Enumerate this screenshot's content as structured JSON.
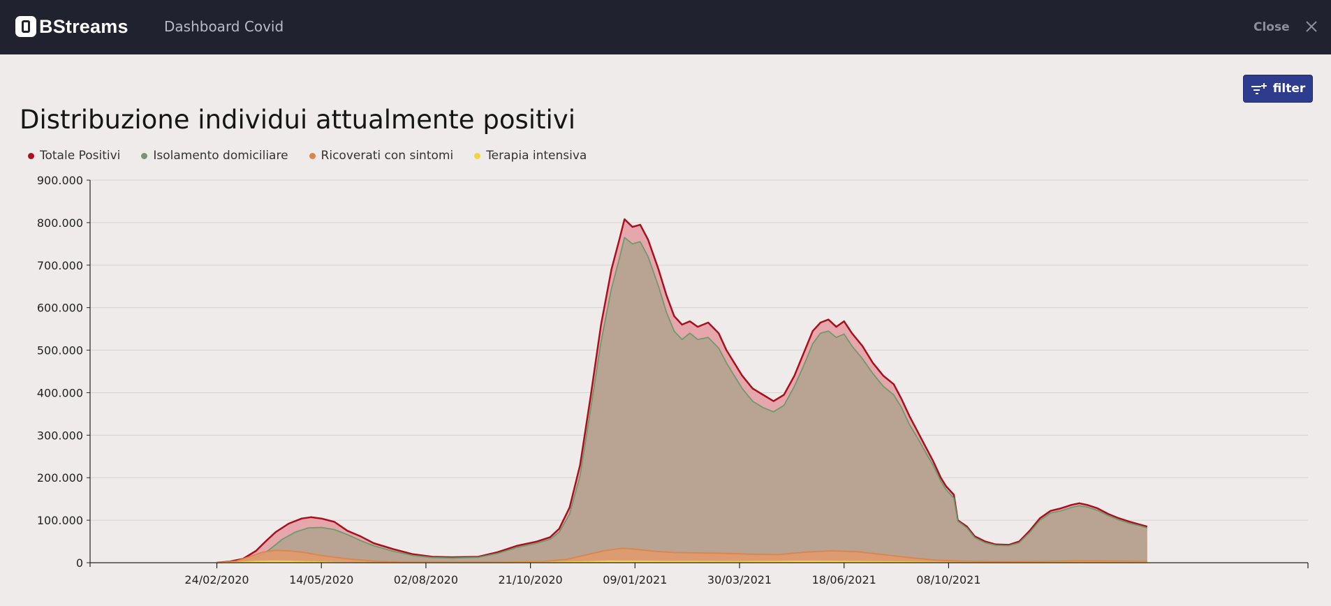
{
  "app": {
    "brand": "BStreams",
    "title": "Dashboard Covid",
    "close_label": "Close"
  },
  "toolbar": {
    "filter_label": "filter"
  },
  "icons": {
    "logo": "bstreams-logo-icon",
    "close": "close-icon",
    "filter": "filter-add-icon"
  },
  "chart_data": {
    "type": "area",
    "title": "Distribuzione individui attualmente positivi",
    "xlabel": "",
    "ylabel": "",
    "ylim": [
      0,
      900000
    ],
    "yticks": [
      0,
      100000,
      200000,
      300000,
      400000,
      500000,
      600000,
      700000,
      800000,
      900000
    ],
    "ytick_labels": [
      "0",
      "100.000",
      "200.000",
      "300.000",
      "400.000",
      "500.000",
      "600.000",
      "700.000",
      "800.000",
      "900.000"
    ],
    "xlim_days": [
      -97,
      835
    ],
    "xtick_days": [
      0,
      80,
      160,
      240,
      320,
      400,
      480,
      560
    ],
    "xtick_labels": [
      "24/02/2020",
      "14/05/2020",
      "02/08/2020",
      "21/10/2020",
      "09/01/2021",
      "30/03/2021",
      "18/06/2021",
      "08/10/2021"
    ],
    "x_unit": "days since 24/02/2020",
    "grid": true,
    "legend_position": "top-left",
    "series": [
      {
        "name": "Totale Positivi",
        "color": "#a8101c",
        "fill": "#e3a0a5",
        "points": [
          [
            0,
            0
          ],
          [
            10,
            3000
          ],
          [
            20,
            9000
          ],
          [
            30,
            28000
          ],
          [
            38,
            52000
          ],
          [
            45,
            72000
          ],
          [
            55,
            92000
          ],
          [
            65,
            104000
          ],
          [
            72,
            107000
          ],
          [
            80,
            104000
          ],
          [
            90,
            96000
          ],
          [
            100,
            75000
          ],
          [
            110,
            62000
          ],
          [
            120,
            46000
          ],
          [
            135,
            32000
          ],
          [
            150,
            20000
          ],
          [
            165,
            14000
          ],
          [
            180,
            13000
          ],
          [
            200,
            14000
          ],
          [
            215,
            25000
          ],
          [
            230,
            40000
          ],
          [
            245,
            50000
          ],
          [
            255,
            60000
          ],
          [
            262,
            80000
          ],
          [
            270,
            130000
          ],
          [
            278,
            230000
          ],
          [
            286,
            390000
          ],
          [
            294,
            560000
          ],
          [
            302,
            690000
          ],
          [
            308,
            760000
          ],
          [
            312,
            808000
          ],
          [
            318,
            790000
          ],
          [
            324,
            795000
          ],
          [
            330,
            760000
          ],
          [
            338,
            690000
          ],
          [
            344,
            630000
          ],
          [
            350,
            580000
          ],
          [
            356,
            560000
          ],
          [
            362,
            568000
          ],
          [
            368,
            555000
          ],
          [
            376,
            565000
          ],
          [
            384,
            540000
          ],
          [
            390,
            500000
          ],
          [
            396,
            470000
          ],
          [
            402,
            440000
          ],
          [
            410,
            410000
          ],
          [
            418,
            395000
          ],
          [
            426,
            380000
          ],
          [
            434,
            395000
          ],
          [
            442,
            440000
          ],
          [
            450,
            500000
          ],
          [
            456,
            545000
          ],
          [
            462,
            565000
          ],
          [
            468,
            572000
          ],
          [
            474,
            555000
          ],
          [
            480,
            568000
          ],
          [
            486,
            540000
          ],
          [
            494,
            510000
          ],
          [
            502,
            470000
          ],
          [
            510,
            440000
          ],
          [
            518,
            420000
          ],
          [
            524,
            385000
          ],
          [
            530,
            345000
          ],
          [
            536,
            310000
          ],
          [
            542,
            275000
          ],
          [
            548,
            240000
          ],
          [
            554,
            200000
          ],
          [
            558,
            180000
          ],
          [
            564,
            160000
          ],
          [
            567,
            100000
          ],
          [
            574,
            85000
          ],
          [
            580,
            62000
          ],
          [
            588,
            50000
          ],
          [
            596,
            43000
          ],
          [
            606,
            42000
          ],
          [
            614,
            50000
          ],
          [
            622,
            75000
          ],
          [
            630,
            105000
          ],
          [
            638,
            122000
          ],
          [
            646,
            128000
          ],
          [
            654,
            136000
          ],
          [
            660,
            140000
          ],
          [
            666,
            136000
          ],
          [
            674,
            128000
          ],
          [
            682,
            115000
          ],
          [
            690,
            105000
          ],
          [
            698,
            97000
          ],
          [
            706,
            90000
          ],
          [
            712,
            85000
          ]
        ]
      },
      {
        "name": "Isolamento domiciliare",
        "color": "#6e9a6c",
        "fill": "#b6a391",
        "points": [
          [
            0,
            0
          ],
          [
            10,
            1500
          ],
          [
            20,
            4000
          ],
          [
            30,
            12000
          ],
          [
            40,
            30000
          ],
          [
            50,
            55000
          ],
          [
            60,
            72000
          ],
          [
            70,
            82000
          ],
          [
            80,
            83000
          ],
          [
            90,
            78000
          ],
          [
            100,
            66000
          ],
          [
            110,
            52000
          ],
          [
            120,
            40000
          ],
          [
            135,
            27000
          ],
          [
            150,
            17000
          ],
          [
            165,
            12000
          ],
          [
            180,
            11000
          ],
          [
            200,
            12500
          ],
          [
            215,
            22000
          ],
          [
            230,
            36000
          ],
          [
            245,
            46000
          ],
          [
            255,
            55000
          ],
          [
            262,
            72000
          ],
          [
            270,
            115000
          ],
          [
            278,
            205000
          ],
          [
            286,
            360000
          ],
          [
            294,
            520000
          ],
          [
            302,
            645000
          ],
          [
            308,
            715000
          ],
          [
            312,
            765000
          ],
          [
            318,
            750000
          ],
          [
            324,
            755000
          ],
          [
            330,
            720000
          ],
          [
            338,
            650000
          ],
          [
            344,
            590000
          ],
          [
            350,
            545000
          ],
          [
            356,
            525000
          ],
          [
            362,
            540000
          ],
          [
            368,
            525000
          ],
          [
            376,
            530000
          ],
          [
            384,
            505000
          ],
          [
            390,
            470000
          ],
          [
            396,
            440000
          ],
          [
            402,
            410000
          ],
          [
            410,
            380000
          ],
          [
            418,
            365000
          ],
          [
            426,
            355000
          ],
          [
            434,
            370000
          ],
          [
            442,
            415000
          ],
          [
            450,
            470000
          ],
          [
            456,
            515000
          ],
          [
            462,
            540000
          ],
          [
            468,
            545000
          ],
          [
            474,
            530000
          ],
          [
            480,
            538000
          ],
          [
            486,
            510000
          ],
          [
            494,
            480000
          ],
          [
            502,
            445000
          ],
          [
            510,
            415000
          ],
          [
            518,
            395000
          ],
          [
            524,
            365000
          ],
          [
            530,
            325000
          ],
          [
            536,
            295000
          ],
          [
            542,
            262000
          ],
          [
            548,
            230000
          ],
          [
            554,
            192000
          ],
          [
            558,
            172000
          ],
          [
            564,
            152000
          ],
          [
            567,
            98000
          ],
          [
            574,
            82000
          ],
          [
            580,
            59000
          ],
          [
            588,
            47000
          ],
          [
            596,
            41000
          ],
          [
            606,
            40000
          ],
          [
            614,
            47000
          ],
          [
            622,
            71000
          ],
          [
            630,
            100000
          ],
          [
            638,
            117000
          ],
          [
            646,
            122000
          ],
          [
            654,
            130000
          ],
          [
            660,
            134000
          ],
          [
            666,
            131000
          ],
          [
            674,
            123000
          ],
          [
            682,
            111000
          ],
          [
            690,
            101000
          ],
          [
            698,
            93000
          ],
          [
            706,
            87000
          ],
          [
            712,
            82000
          ]
        ]
      },
      {
        "name": "Ricoverati con sintomi",
        "color": "#dd8447",
        "fill": "#e09a6e",
        "points": [
          [
            0,
            0
          ],
          [
            15,
            4000
          ],
          [
            25,
            14000
          ],
          [
            35,
            25000
          ],
          [
            45,
            29000
          ],
          [
            55,
            28000
          ],
          [
            65,
            25000
          ],
          [
            80,
            17000
          ],
          [
            100,
            9000
          ],
          [
            120,
            4000
          ],
          [
            140,
            1500
          ],
          [
            180,
            800
          ],
          [
            220,
            1500
          ],
          [
            250,
            3000
          ],
          [
            268,
            8000
          ],
          [
            282,
            18000
          ],
          [
            296,
            28000
          ],
          [
            310,
            34000
          ],
          [
            320,
            32000
          ],
          [
            335,
            27000
          ],
          [
            350,
            24000
          ],
          [
            370,
            23000
          ],
          [
            390,
            22000
          ],
          [
            410,
            20000
          ],
          [
            430,
            19000
          ],
          [
            450,
            25000
          ],
          [
            470,
            28000
          ],
          [
            490,
            26000
          ],
          [
            510,
            19000
          ],
          [
            530,
            12000
          ],
          [
            550,
            6000
          ],
          [
            570,
            4000
          ],
          [
            600,
            2500
          ],
          [
            630,
            3000
          ],
          [
            660,
            4500
          ],
          [
            690,
            4000
          ],
          [
            712,
            3500
          ]
        ]
      },
      {
        "name": "Terapia intensiva",
        "color": "#f5d245",
        "fill": "#f3dd7a",
        "points": [
          [
            0,
            0
          ],
          [
            15,
            500
          ],
          [
            30,
            3000
          ],
          [
            42,
            4000
          ],
          [
            55,
            3500
          ],
          [
            70,
            2000
          ],
          [
            90,
            800
          ],
          [
            120,
            100
          ],
          [
            200,
            200
          ],
          [
            250,
            600
          ],
          [
            280,
            2000
          ],
          [
            300,
            3700
          ],
          [
            320,
            3600
          ],
          [
            350,
            2800
          ],
          [
            400,
            2500
          ],
          [
            450,
            3500
          ],
          [
            480,
            3200
          ],
          [
            520,
            1800
          ],
          [
            560,
            500
          ],
          [
            600,
            200
          ],
          [
            650,
            500
          ],
          [
            700,
            400
          ],
          [
            712,
            400
          ]
        ]
      }
    ]
  }
}
